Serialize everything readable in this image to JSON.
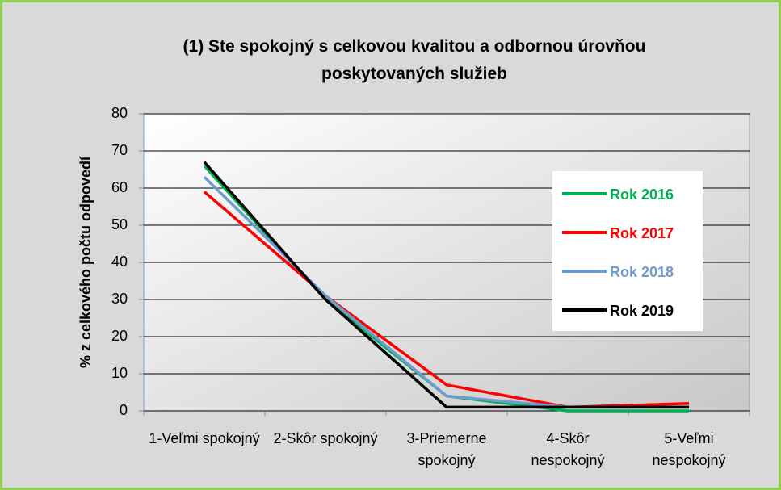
{
  "chart_data": {
    "type": "line",
    "title": "(1) Ste spokojný s celkovou kvalitou a odbornou úrovňou poskytovaných služieb",
    "y_label": "% z celkového počtu odpovedí",
    "categories": [
      "1-Veľmi spokojný",
      "2-Skôr spokojný",
      "3-Priemerne spokojný",
      "4-Skôr nespokojný",
      "5-Veľmi nespokojný"
    ],
    "series": [
      {
        "name": "Rok 2016",
        "color": "#00b050",
        "values": [
          66,
          30,
          4,
          0,
          0
        ]
      },
      {
        "name": "Rok 2017",
        "color": "#ff0000",
        "values": [
          59,
          31,
          7,
          1,
          2
        ]
      },
      {
        "name": "Rok 2018",
        "color": "#6e9bd0",
        "values": [
          63,
          31,
          4,
          1,
          1
        ]
      },
      {
        "name": "Rok 2019",
        "color": "#000000",
        "values": [
          67,
          30,
          1,
          1,
          1
        ]
      }
    ],
    "ylim": [
      0,
      80
    ],
    "yticks": [
      0,
      10,
      20,
      30,
      40,
      50,
      60,
      70,
      80
    ],
    "grid": true,
    "legend": "right"
  }
}
